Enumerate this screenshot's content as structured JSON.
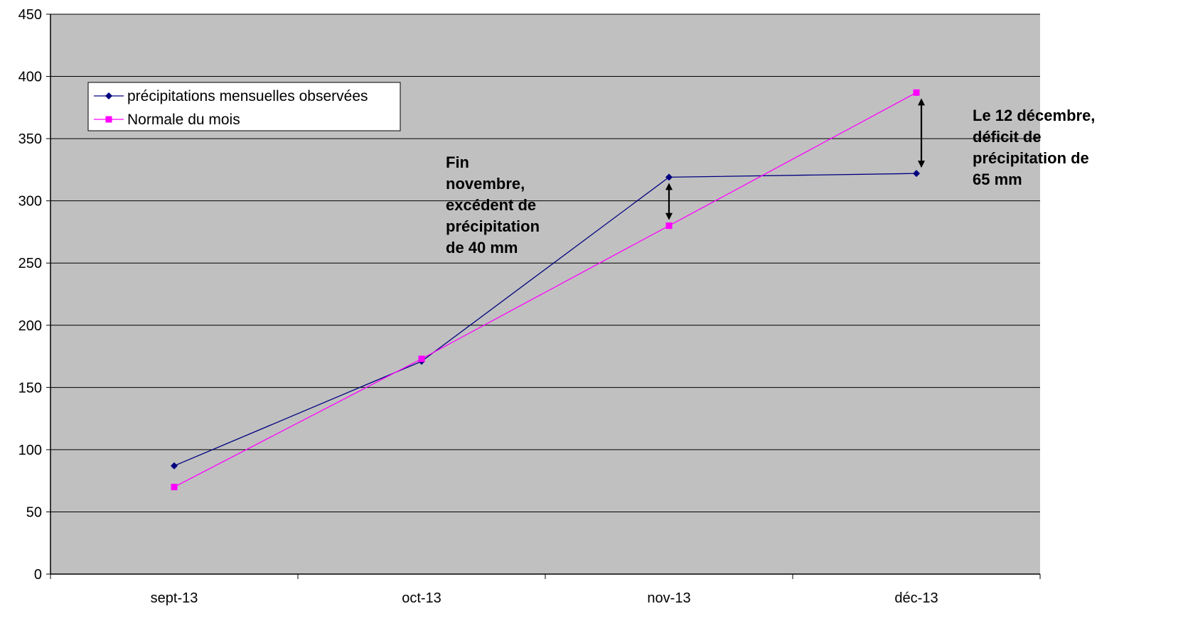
{
  "chart_data": {
    "type": "line",
    "categories": [
      "sept-13",
      "oct-13",
      "nov-13",
      "déc-13"
    ],
    "ylim": [
      0,
      450
    ],
    "yticks": [
      0,
      50,
      100,
      150,
      200,
      250,
      300,
      350,
      400,
      450
    ],
    "grid": true,
    "legend_position": "top-left",
    "plot_background": "#c0c0c0",
    "series": [
      {
        "name": "précipitations mensuelles observées",
        "values": [
          87,
          171,
          319,
          322
        ],
        "color": "#000080",
        "marker": "diamond"
      },
      {
        "name": "Normale du mois",
        "values": [
          70,
          173,
          280,
          387
        ],
        "color": "#ff00ff",
        "marker": "square"
      }
    ],
    "annotations": [
      {
        "lines": [
          "Fin",
          "novembre,",
          "excédent de",
          "précipitation",
          "de 40 mm"
        ],
        "category": "nov-13",
        "from": 280,
        "to": 319
      },
      {
        "lines": [
          "Le 12 décembre,",
          "déficit de",
          "précipitation de",
          "65 mm"
        ],
        "category": "déc-13",
        "from": 322,
        "to": 387
      }
    ]
  }
}
